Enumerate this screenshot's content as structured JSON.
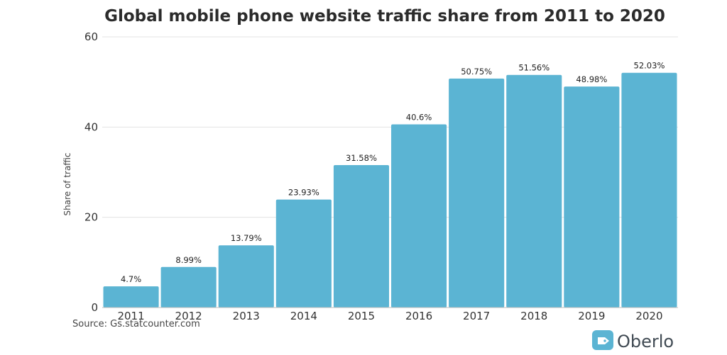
{
  "chart_data": {
    "type": "bar",
    "title": "Global mobile phone website traffic share from 2011 to 2020",
    "xlabel": "",
    "ylabel": "Share of traffic",
    "categories": [
      "2011",
      "2012",
      "2013",
      "2014",
      "2015",
      "2016",
      "2017",
      "2018",
      "2019",
      "2020"
    ],
    "values": [
      4.7,
      8.99,
      13.79,
      23.93,
      31.58,
      40.6,
      50.75,
      51.56,
      48.98,
      52.03
    ],
    "data_labels": [
      "4.7%",
      "8.99%",
      "13.79%",
      "23.93%",
      "31.58%",
      "40.6%",
      "50.75%",
      "51.56%",
      "48.98%",
      "52.03%"
    ],
    "ylim": [
      0,
      60
    ],
    "yticks": [
      0,
      20,
      40,
      60
    ],
    "grid": true,
    "bar_color": "#5bb4d3"
  },
  "footer": {
    "source": "Source: Gs.statcounter.com",
    "brand": "Oberlo",
    "brand_icon": "oberlo-tag-icon",
    "brand_color": "#5bb4d3"
  }
}
